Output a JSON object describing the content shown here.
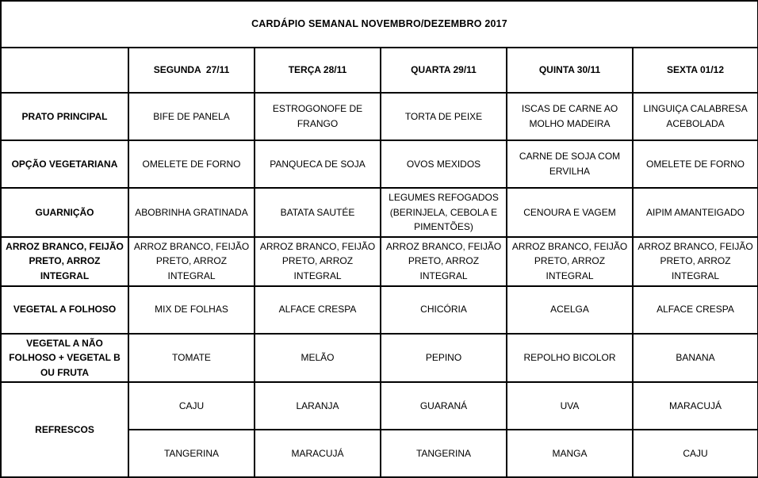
{
  "title": "CARDÁPIO SEMANAL NOVEMBRO/DEZEMBRO 2017",
  "colors": {
    "border": "#000000",
    "text": "#000000",
    "background": "#ffffff"
  },
  "columns": [
    "",
    "SEGUNDA  27/11",
    "TERÇA 28/11",
    "QUARTA 29/11",
    "QUINTA 30/11",
    "SEXTA 01/12"
  ],
  "rows": [
    {
      "label": "PRATO PRINCIPAL",
      "cells": [
        "BIFE DE PANELA",
        "ESTROGONOFE DE FRANGO",
        "TORTA DE PEIXE",
        "ISCAS DE CARNE AO MOLHO MADEIRA",
        "LINGUIÇA CALABRESA ACEBOLADA"
      ]
    },
    {
      "label": "OPÇÃO VEGETARIANA",
      "cells": [
        "OMELETE DE FORNO",
        "PANQUECA DE SOJA",
        "OVOS MEXIDOS",
        "CARNE DE SOJA COM ERVILHA",
        "OMELETE DE FORNO"
      ]
    },
    {
      "label": "GUARNIÇÃO",
      "cells": [
        "ABOBRINHA GRATINADA",
        "BATATA SAUTÉE",
        "LEGUMES REFOGADOS (BERINJELA, CEBOLA E PIMENTÕES)",
        "CENOURA E VAGEM",
        "AIPIM AMANTEIGADO"
      ]
    },
    {
      "label": "ARROZ BRANCO, FEIJÃO PRETO, ARROZ INTEGRAL",
      "cells": [
        "ARROZ BRANCO, FEIJÃO PRETO, ARROZ INTEGRAL",
        "ARROZ BRANCO, FEIJÃO PRETO, ARROZ INTEGRAL",
        "ARROZ BRANCO, FEIJÃO PRETO, ARROZ INTEGRAL",
        "ARROZ BRANCO, FEIJÃO PRETO, ARROZ INTEGRAL",
        "ARROZ BRANCO, FEIJÃO PRETO, ARROZ INTEGRAL"
      ]
    },
    {
      "label": "VEGETAL A FOLHOSO",
      "cells": [
        "MIX DE FOLHAS",
        "ALFACE CRESPA",
        "CHICÓRIA",
        "ACELGA",
        "ALFACE CRESPA"
      ]
    },
    {
      "label": "VEGETAL A NÃO FOLHOSO + VEGETAL B OU FRUTA",
      "cells": [
        "TOMATE",
        "MELÃO",
        "PEPINO",
        "REPOLHO BICOLOR",
        "BANANA"
      ]
    },
    {
      "label": "REFRESCOS",
      "rowspan": 2,
      "cells": [
        "CAJU",
        "LARANJA",
        "GUARANÁ",
        "UVA",
        "MARACUJÁ"
      ]
    },
    {
      "label": null,
      "cells": [
        "TANGERINA",
        "MARACUJÁ",
        "TANGERINA",
        "MANGA",
        "CAJU"
      ]
    }
  ]
}
